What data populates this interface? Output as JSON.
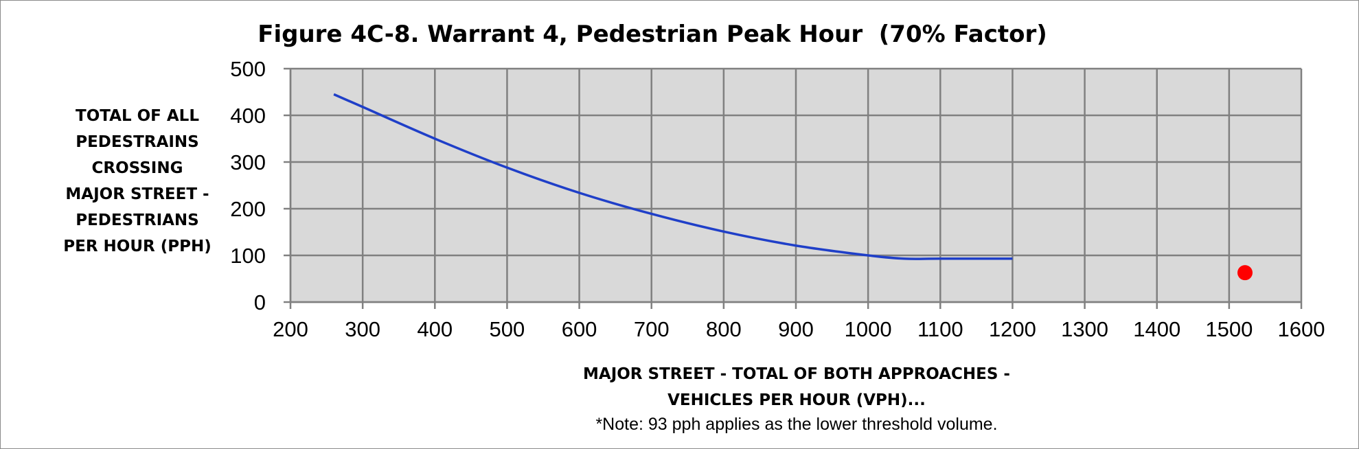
{
  "chart_data": {
    "type": "line",
    "title": "Figure 4C-8. Warrant 4, Pedestrian Peak Hour  (70% Factor)",
    "ylabel": "TOTAL OF ALL\nPEDESTRAINS\nCROSSING\nMAJOR STREET -\nPEDESTRIANS\nPER HOUR (PPH)",
    "xlabel": "MAJOR STREET - TOTAL OF BOTH APPROACHES -\nVEHICLES PER HOUR (VPH)...",
    "note": "*Note: 93 pph applies as the lower threshold volume.",
    "xlim": [
      200,
      1600
    ],
    "ylim": [
      0,
      500
    ],
    "xticks": [
      200,
      300,
      400,
      500,
      600,
      700,
      800,
      900,
      1000,
      1100,
      1200,
      1300,
      1400,
      1500,
      1600
    ],
    "yticks": [
      0,
      100,
      200,
      300,
      400,
      500
    ],
    "grid": true,
    "legend": "none",
    "plot_background": "#d9d9d9",
    "grid_color": "#808080",
    "series": [
      {
        "type": "line",
        "color": "#1f3fc8",
        "x": [
          260,
          300,
          400,
          500,
          600,
          700,
          800,
          900,
          1000,
          1050,
          1100,
          1200
        ],
        "y": [
          445,
          418,
          350,
          288,
          234,
          189,
          151,
          121,
          100,
          93,
          93,
          93
        ]
      },
      {
        "type": "scatter",
        "color": "#ff0000",
        "x": [
          1522
        ],
        "y": [
          63
        ]
      }
    ]
  }
}
